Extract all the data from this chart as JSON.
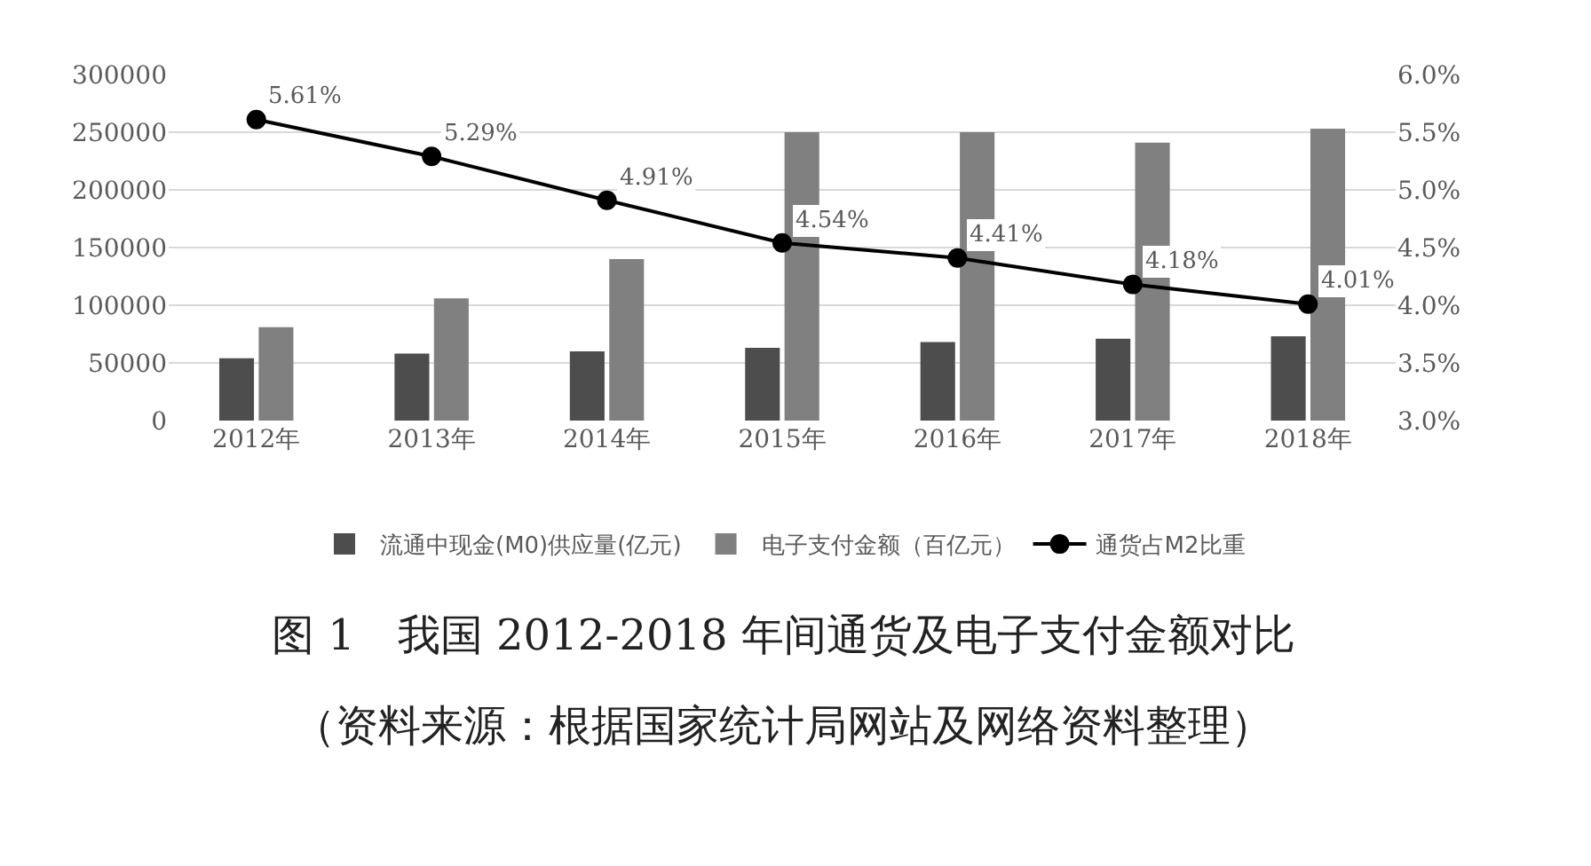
{
  "chart_data": {
    "type": "bar",
    "title": "图 1　我国 2012-2018 年间通货及电子支付金额对比",
    "annotations": [
      "（资料来源：根据国家统计局网站及网络资料整理）"
    ],
    "categories": [
      "2012年",
      "2013年",
      "2014年",
      "2015年",
      "2016年",
      "2017年",
      "2018年"
    ],
    "series": [
      {
        "name": "流通中现金(M0)供应量(亿元)",
        "color": "#4d4d4d",
        "values": [
          54000,
          58000,
          60000,
          63000,
          68000,
          71000,
          73000
        ]
      },
      {
        "name": "电子支付金额（百亿元）",
        "color": "#808080",
        "values": [
          81000,
          106000,
          140000,
          250000,
          250000,
          241000,
          253000
        ]
      },
      {
        "name": "通货占M2比重",
        "type": "line",
        "axis": "y2",
        "color": "#000000",
        "marker": "circle",
        "values": [
          5.61,
          5.29,
          4.91,
          4.54,
          4.41,
          4.18,
          4.01
        ],
        "value_labels": [
          "5.61%",
          "5.29%",
          "4.91%",
          "4.54%",
          "4.41%",
          "4.18%",
          "4.01%"
        ]
      }
    ],
    "ylim": [
      0,
      300000
    ],
    "yticks": [
      0,
      50000,
      100000,
      150000,
      200000,
      250000,
      300000
    ],
    "y2lim": [
      3,
      6
    ],
    "y2ticks": [
      {
        "value": 3,
        "label": "3.0%"
      },
      {
        "value": 3.5,
        "label": "3.5%"
      },
      {
        "value": 4,
        "label": "4.0%"
      },
      {
        "value": 4.5,
        "label": "4.5%"
      },
      {
        "value": 5,
        "label": "5.0%"
      },
      {
        "value": 5.5,
        "label": "5.5%"
      },
      {
        "value": 6,
        "label": "6.0%"
      }
    ],
    "grid": "y",
    "legend": "bottom"
  }
}
